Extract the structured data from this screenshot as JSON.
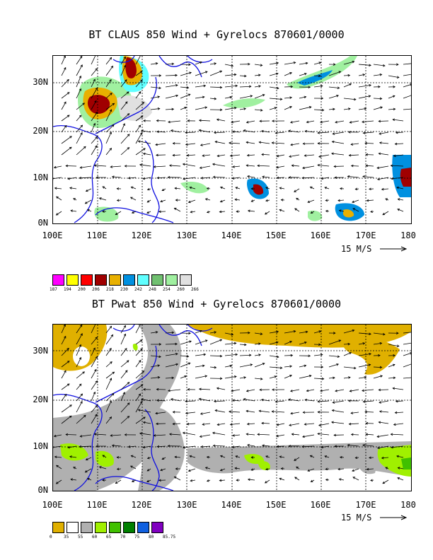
{
  "panel1": {
    "title": "BT CLAUS 850 Wind + Gyrelocs 870601/0000",
    "lat_labels": [
      "30N",
      "20N",
      "10N",
      "0N"
    ],
    "lon_labels": [
      "100E",
      "110E",
      "120E",
      "130E",
      "140E",
      "150E",
      "160E",
      "170E",
      "180"
    ],
    "scale_label": "15 M/S",
    "legend": {
      "colors": [
        "#ff00ff",
        "#ffff00",
        "#ff0000",
        "#a00000",
        "#e8b000",
        "#0090e0",
        "#60ffff",
        "#70c070",
        "#a0f0a0",
        "#e0e0e0"
      ],
      "labels": [
        "187",
        "194",
        "200",
        "206",
        "218",
        "230",
        "242",
        "248",
        "254",
        "260",
        "266"
      ]
    }
  },
  "panel2": {
    "title": "BT Pwat 850 Wind + Gyrelocs 870601/0000",
    "lat_labels": [
      "30N",
      "20N",
      "10N",
      "0N"
    ],
    "lon_labels": [
      "100E",
      "110E",
      "120E",
      "130E",
      "140E",
      "150E",
      "160E",
      "170E",
      "180"
    ],
    "scale_label": "15 M/S",
    "legend": {
      "colors": [
        "#e0b000",
        "#ffffff",
        "#b0b0b0",
        "#a0f000",
        "#40c000",
        "#008000",
        "#1060e0",
        "#8000c0"
      ],
      "labels": [
        "0",
        "35",
        "55",
        "60",
        "65",
        "70",
        "75",
        "80",
        "85.75"
      ]
    }
  }
}
